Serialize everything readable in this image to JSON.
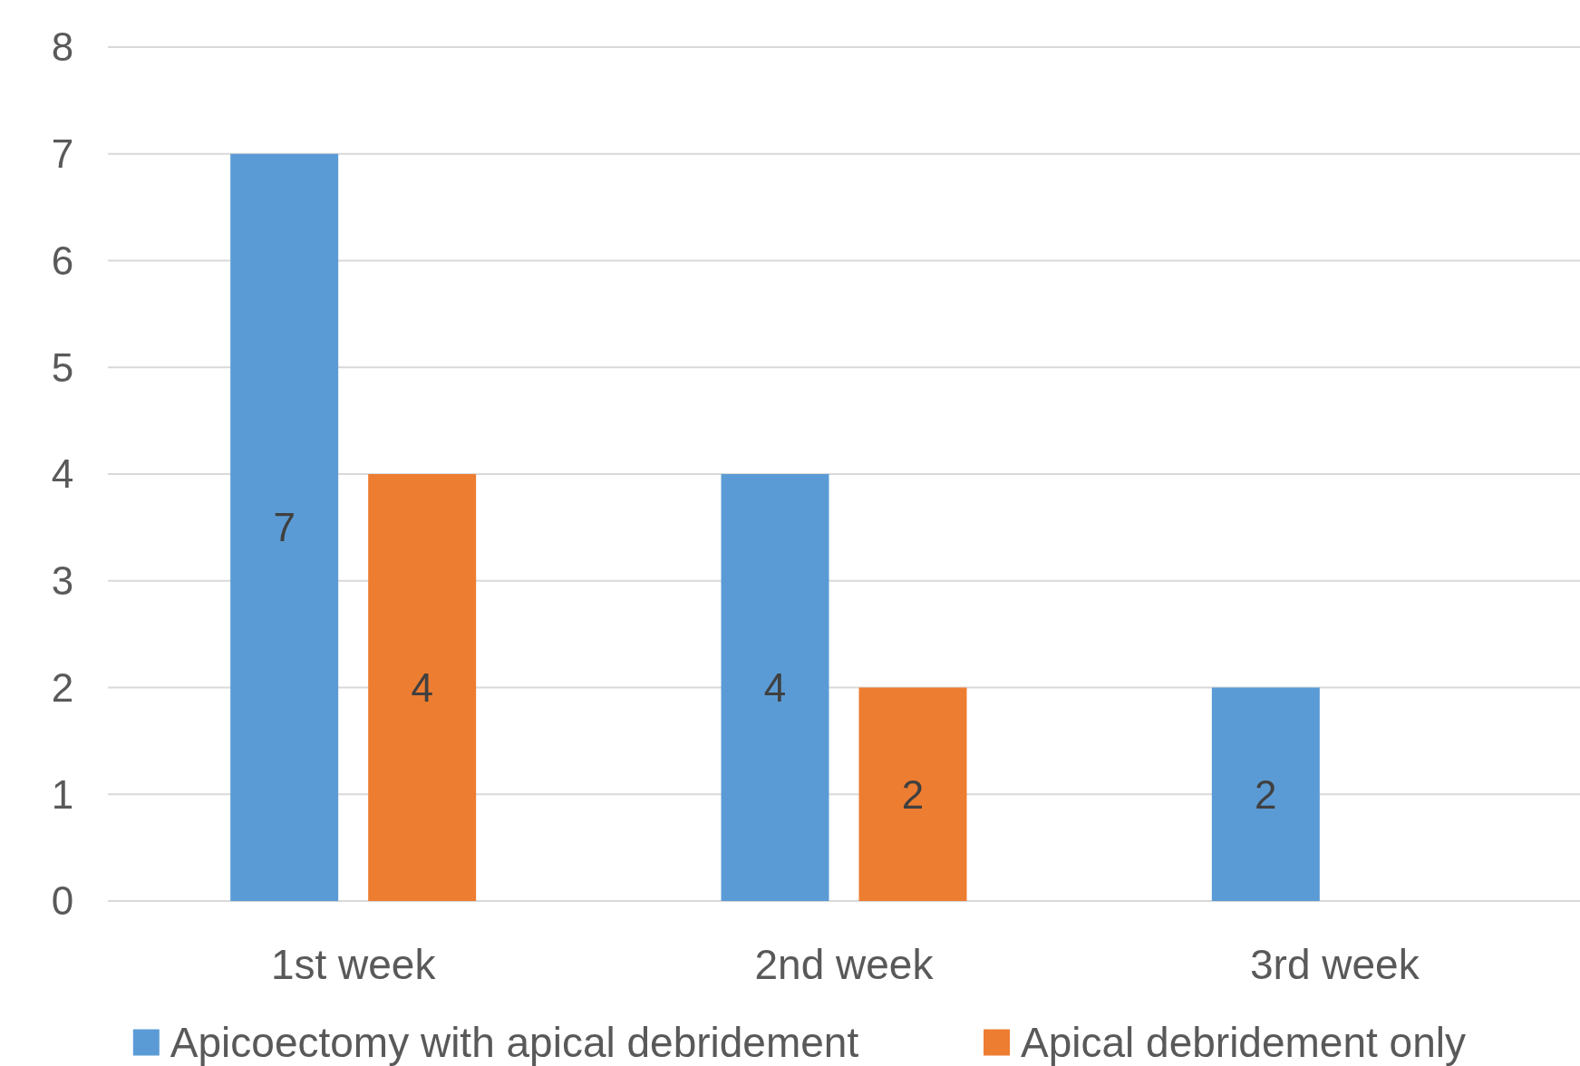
{
  "chart_data": {
    "type": "bar",
    "categories": [
      "1st week",
      "2nd week",
      "3rd week"
    ],
    "series": [
      {
        "name": "Apicoectomy with apical debridement",
        "color": "#5b9bd5",
        "values": [
          7,
          4,
          2
        ]
      },
      {
        "name": "Apical debridement only",
        "color": "#ed7d31",
        "values": [
          4,
          2,
          null
        ]
      }
    ],
    "ylim": [
      0,
      8
    ],
    "yticks": [
      0,
      1,
      2,
      3,
      4,
      5,
      6,
      7,
      8
    ],
    "grid": "y",
    "legend": "bottom",
    "data_labels": true
  }
}
